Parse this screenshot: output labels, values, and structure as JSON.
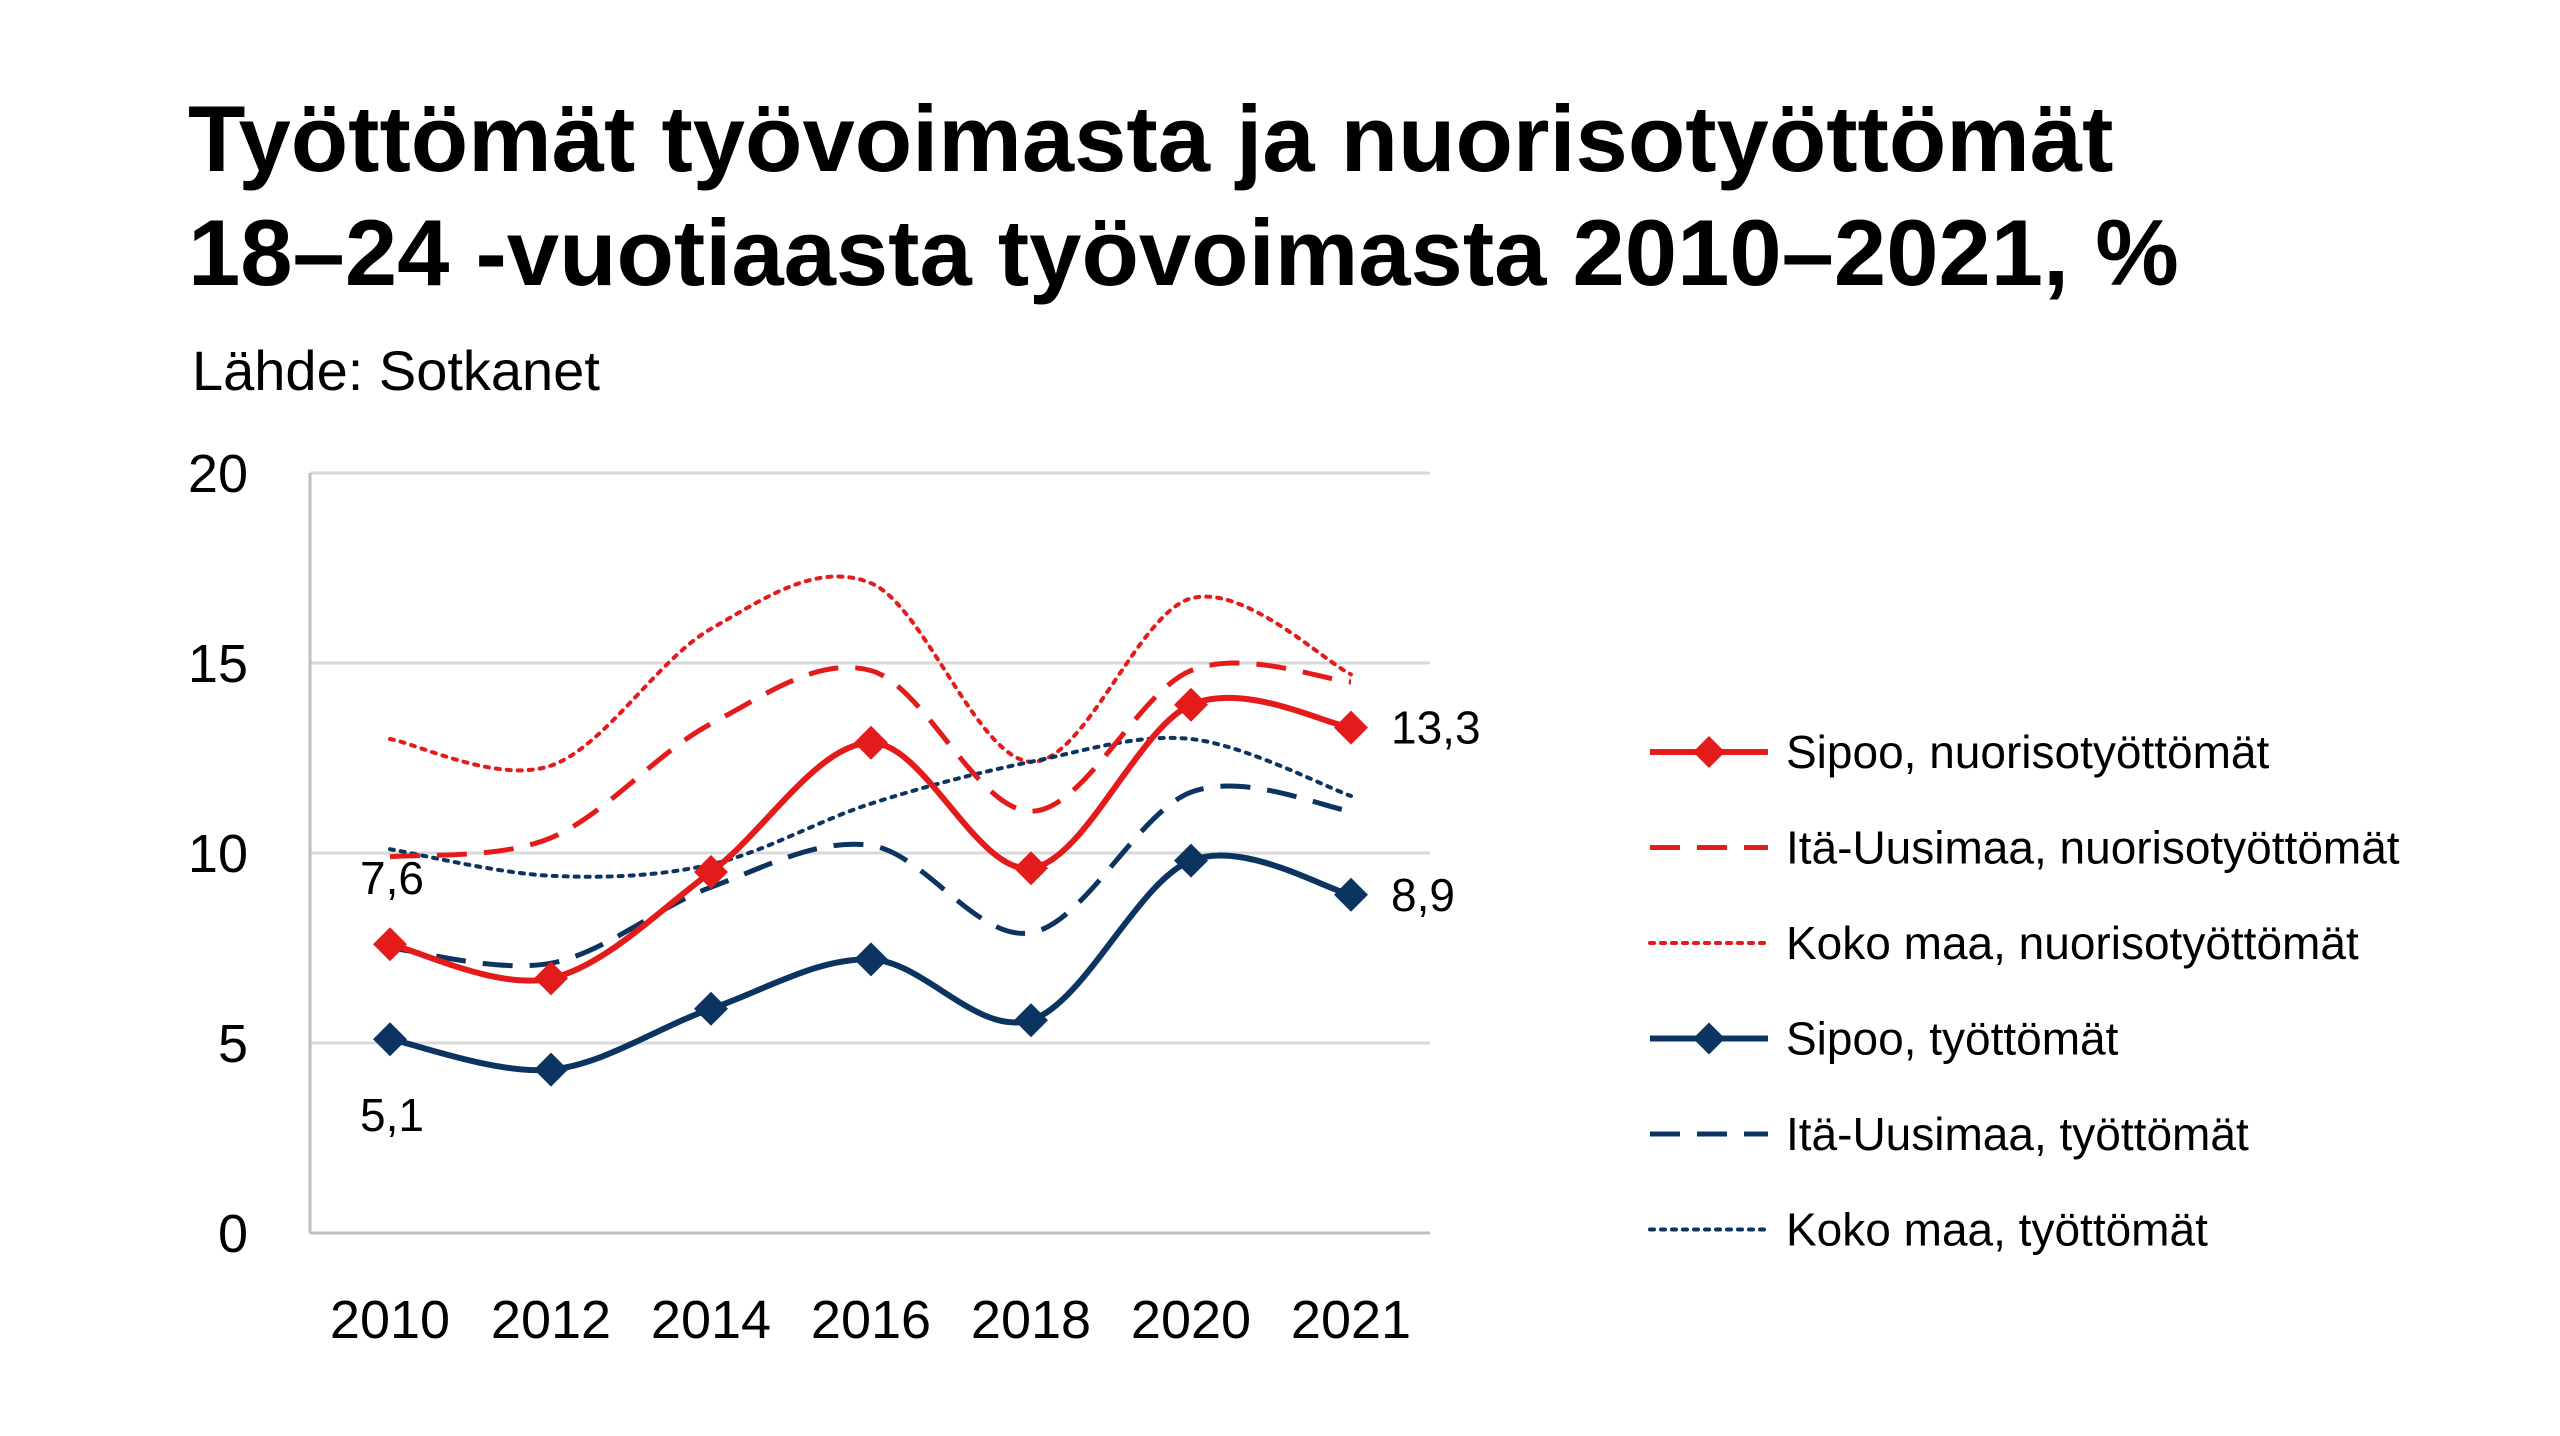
{
  "title_line1": "Työttömät työvoimasta ja nuorisotyöttömät",
  "title_line2": "18–24 -vuotiaasta työvoimasta 2010–2021, %",
  "source": "Lähde: Sotkanet",
  "chart_data": {
    "type": "line",
    "x": [
      "2010",
      "2012",
      "2014",
      "2016",
      "2018",
      "2020",
      "2021"
    ],
    "ylim": [
      0,
      20
    ],
    "yticks": [
      0,
      5,
      10,
      15,
      20
    ],
    "grid": true,
    "legend_position": "right",
    "smoothed": true,
    "colors": {
      "red": "#e41b1b",
      "navy": "#0c3461",
      "grid": "#d9d9d9",
      "axis": "#bfbfbf"
    },
    "series": [
      {
        "name": "Sipoo, nuorisotyöttömät",
        "color": "#e41b1b",
        "style": "solid",
        "marker": "diamond",
        "values": [
          7.6,
          6.7,
          9.5,
          12.9,
          9.6,
          13.9,
          13.3
        ]
      },
      {
        "name": "Itä-Uusimaa, nuorisotyöttömät",
        "color": "#e41b1b",
        "style": "dashed",
        "marker": "none",
        "values": [
          9.9,
          10.4,
          13.4,
          14.8,
          11.1,
          14.8,
          14.5
        ]
      },
      {
        "name": "Koko maa, nuorisotyöttömät",
        "color": "#e41b1b",
        "style": "dotted",
        "marker": "none",
        "values": [
          13.0,
          12.3,
          15.9,
          17.1,
          12.4,
          16.7,
          14.7
        ]
      },
      {
        "name": "Sipoo, työttömät",
        "color": "#0c3461",
        "style": "solid",
        "marker": "diamond",
        "values": [
          5.1,
          4.3,
          5.9,
          7.2,
          5.6,
          9.8,
          8.9
        ]
      },
      {
        "name": "Itä-Uusimaa, työttömät",
        "color": "#0c3461",
        "style": "dashed",
        "marker": "none",
        "values": [
          7.5,
          7.1,
          9.1,
          10.2,
          7.9,
          11.6,
          11.1
        ]
      },
      {
        "name": "Koko maa, työttömät",
        "color": "#0c3461",
        "style": "dotted",
        "marker": "none",
        "values": [
          10.1,
          9.4,
          9.7,
          11.3,
          12.4,
          13.0,
          11.5
        ]
      }
    ],
    "annotations": [
      {
        "series": 0,
        "point": 0,
        "text": "7,6",
        "position": "above"
      },
      {
        "series": 0,
        "point": 6,
        "text": "13,3",
        "position": "right"
      },
      {
        "series": 3,
        "point": 0,
        "text": "5,1",
        "position": "below"
      },
      {
        "series": 3,
        "point": 6,
        "text": "8,9",
        "position": "right"
      }
    ]
  }
}
